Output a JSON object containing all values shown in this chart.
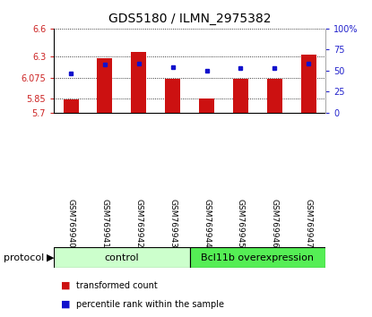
{
  "title": "GDS5180 / ILMN_2975382",
  "samples": [
    "GSM769940",
    "GSM769941",
    "GSM769942",
    "GSM769943",
    "GSM769944",
    "GSM769945",
    "GSM769946",
    "GSM769947"
  ],
  "transformed_counts": [
    5.84,
    6.28,
    6.35,
    6.06,
    5.855,
    6.06,
    6.06,
    6.32
  ],
  "percentile_ranks": [
    47,
    57,
    58,
    54,
    50,
    53,
    53,
    58
  ],
  "ylim_left": [
    5.7,
    6.6
  ],
  "ylim_right": [
    0,
    100
  ],
  "yticks_left": [
    5.7,
    5.85,
    6.075,
    6.3,
    6.6
  ],
  "yticks_right": [
    0,
    25,
    50,
    75,
    100
  ],
  "ytick_labels_left": [
    "5.7",
    "5.85",
    "6.075",
    "6.3",
    "6.6"
  ],
  "ytick_labels_right": [
    "0",
    "25",
    "50",
    "75",
    "100%"
  ],
  "bar_color": "#cc1111",
  "dot_color": "#1111cc",
  "bar_bottom": 5.7,
  "grid_color": "#000000",
  "bg_color": "#ffffff",
  "protocol_label": "protocol",
  "group_labels": [
    "control",
    "Bcl11b overexpression"
  ],
  "group_split": 4,
  "group_colors": [
    "#ccffcc",
    "#55ee55"
  ],
  "label_bg_color": "#c8c8c8",
  "label_divider_color": "#ffffff",
  "tick_label_color_left": "#cc2222",
  "tick_label_color_right": "#2222cc",
  "title_fontsize": 10,
  "tick_fontsize": 7,
  "sample_fontsize": 6.5,
  "protocol_fontsize": 8,
  "legend_fontsize": 7
}
